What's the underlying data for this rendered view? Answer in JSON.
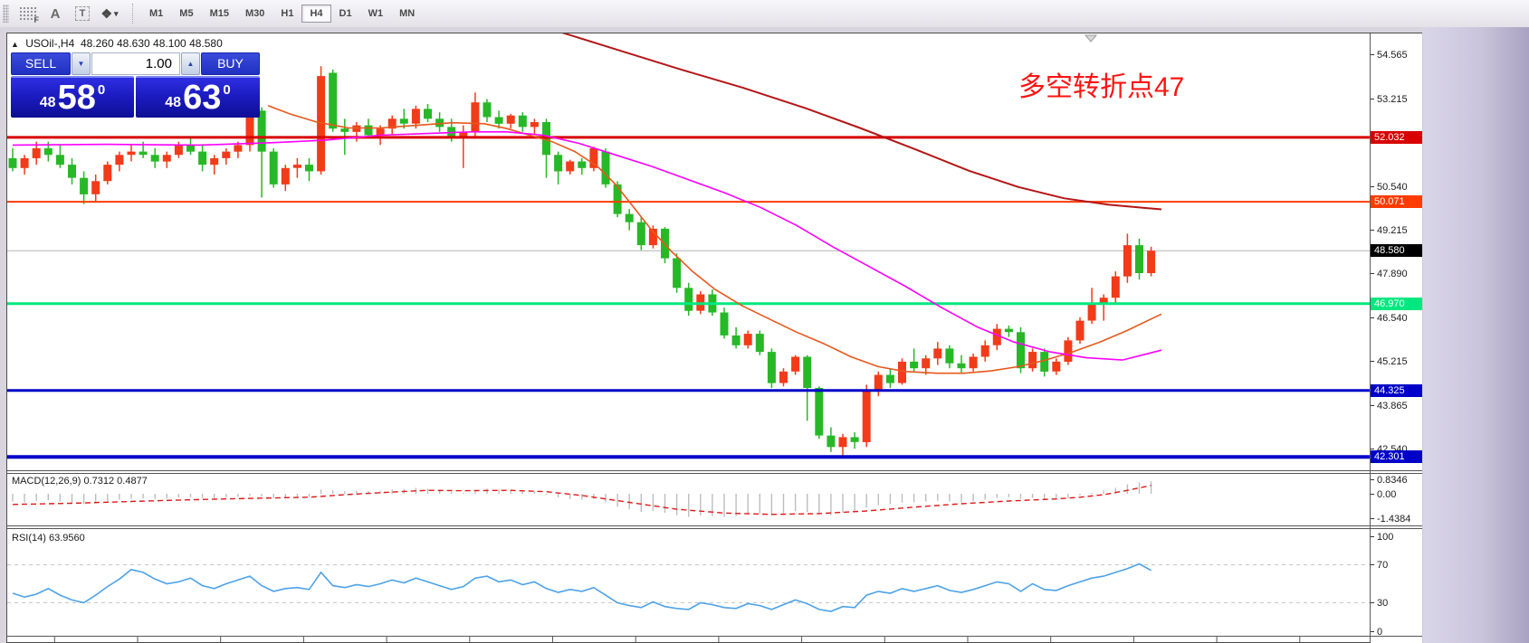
{
  "toolbar": {
    "icons": [
      {
        "name": "chart-shift-icon",
        "glyph": "F"
      },
      {
        "name": "text-label-icon",
        "glyph": "A"
      },
      {
        "name": "text-box-icon",
        "glyph": "T"
      },
      {
        "name": "arrows-shapes-icon",
        "glyph": "❖"
      }
    ],
    "timeframes": [
      {
        "label": "M1",
        "selected": false
      },
      {
        "label": "M5",
        "selected": false
      },
      {
        "label": "M15",
        "selected": false
      },
      {
        "label": "M30",
        "selected": false
      },
      {
        "label": "H1",
        "selected": false
      },
      {
        "label": "H4",
        "selected": true
      },
      {
        "label": "D1",
        "selected": false
      },
      {
        "label": "W1",
        "selected": false
      },
      {
        "label": "MN",
        "selected": false
      }
    ]
  },
  "header": {
    "collapse_arrow": "▲",
    "symbol": "USOil-,H4",
    "quotes": "48.260 48.630 48.100 48.580"
  },
  "trade_panel": {
    "sell_label": "SELL",
    "buy_label": "BUY",
    "volume": "1.00",
    "spin_down": "▼",
    "spin_up": "▲",
    "sell_price": {
      "small": "48",
      "big": "58",
      "sup": "0"
    },
    "buy_price": {
      "small": "48",
      "big": "63",
      "sup": "0"
    }
  },
  "annotation": {
    "text": "多空转折点47",
    "color": "#fd1412"
  },
  "macd_panel": {
    "label": "MACD(12,26,9) 0.7312 0.4877"
  },
  "rsi_panel": {
    "label": "RSI(14) 63.9560"
  },
  "chart_data": {
    "type": "candlestick",
    "symbol": "USOil-",
    "timeframe": "H4",
    "last_price": 48.58,
    "colors": {
      "up": "#f23b19",
      "down": "#27b827",
      "hist": "#bdbdbd",
      "signal": "#e01818",
      "rsi": "#4da2e8",
      "guide": "#c6c6c6"
    },
    "ohlc": [
      [
        51.4,
        51.7,
        51.0,
        51.1
      ],
      [
        51.1,
        51.5,
        50.9,
        51.4
      ],
      [
        51.4,
        51.9,
        51.2,
        51.7
      ],
      [
        51.7,
        51.9,
        51.3,
        51.5
      ],
      [
        51.5,
        51.8,
        51.1,
        51.2
      ],
      [
        51.2,
        51.4,
        50.6,
        50.8
      ],
      [
        50.8,
        51.0,
        50.0,
        50.3
      ],
      [
        50.3,
        50.9,
        50.1,
        50.7
      ],
      [
        50.7,
        51.3,
        50.6,
        51.2
      ],
      [
        51.2,
        51.6,
        51.0,
        51.5
      ],
      [
        51.5,
        51.8,
        51.3,
        51.6
      ],
      [
        51.6,
        51.9,
        51.4,
        51.5
      ],
      [
        51.5,
        51.7,
        51.1,
        51.3
      ],
      [
        51.3,
        51.6,
        51.1,
        51.5
      ],
      [
        51.5,
        51.9,
        51.4,
        51.8
      ],
      [
        51.8,
        52.0,
        51.5,
        51.6
      ],
      [
        51.6,
        51.8,
        51.0,
        51.2
      ],
      [
        51.2,
        51.5,
        50.9,
        51.4
      ],
      [
        51.4,
        51.7,
        51.2,
        51.6
      ],
      [
        51.6,
        51.9,
        51.4,
        51.8
      ],
      [
        51.8,
        52.9,
        51.6,
        52.85
      ],
      [
        52.85,
        52.95,
        50.2,
        51.6
      ],
      [
        51.6,
        51.7,
        50.5,
        50.6
      ],
      [
        50.6,
        51.2,
        50.4,
        51.1
      ],
      [
        51.1,
        51.4,
        50.8,
        51.2
      ],
      [
        51.2,
        51.4,
        50.7,
        51.0
      ],
      [
        51.0,
        54.2,
        50.9,
        53.9
      ],
      [
        54.0,
        54.1,
        52.2,
        52.3
      ],
      [
        52.3,
        52.6,
        51.5,
        52.2
      ],
      [
        52.2,
        52.5,
        51.9,
        52.4
      ],
      [
        52.4,
        52.6,
        52.0,
        52.1
      ],
      [
        52.1,
        52.4,
        51.8,
        52.3
      ],
      [
        52.3,
        52.7,
        52.1,
        52.6
      ],
      [
        52.6,
        52.9,
        52.3,
        52.45
      ],
      [
        52.45,
        53.0,
        52.3,
        52.9
      ],
      [
        52.9,
        53.05,
        52.5,
        52.6
      ],
      [
        52.6,
        52.8,
        52.2,
        52.35
      ],
      [
        52.35,
        52.6,
        51.9,
        52.05
      ],
      [
        52.05,
        52.4,
        51.1,
        52.2
      ],
      [
        52.2,
        53.4,
        52.0,
        53.1
      ],
      [
        53.1,
        53.2,
        52.5,
        52.65
      ],
      [
        52.65,
        52.85,
        52.3,
        52.45
      ],
      [
        52.45,
        52.75,
        52.3,
        52.7
      ],
      [
        52.7,
        52.8,
        52.2,
        52.35
      ],
      [
        52.35,
        52.6,
        52.1,
        52.5
      ],
      [
        52.5,
        52.6,
        50.8,
        51.5
      ],
      [
        51.5,
        51.6,
        50.6,
        51.0
      ],
      [
        51.0,
        51.35,
        50.9,
        51.3
      ],
      [
        51.3,
        51.4,
        50.9,
        51.1
      ],
      [
        51.1,
        51.75,
        51.0,
        51.7
      ],
      [
        51.6,
        51.7,
        50.5,
        50.6
      ],
      [
        50.6,
        50.7,
        49.6,
        49.7
      ],
      [
        49.7,
        49.85,
        49.2,
        49.45
      ],
      [
        49.45,
        49.6,
        48.6,
        48.75
      ],
      [
        48.75,
        49.35,
        48.65,
        49.25
      ],
      [
        49.25,
        49.3,
        48.2,
        48.35
      ],
      [
        48.35,
        48.5,
        47.3,
        47.45
      ],
      [
        47.45,
        47.6,
        46.6,
        46.75
      ],
      [
        46.75,
        47.35,
        46.65,
        47.25
      ],
      [
        47.25,
        47.4,
        46.6,
        46.7
      ],
      [
        46.7,
        46.85,
        45.9,
        46.0
      ],
      [
        46.0,
        46.25,
        45.6,
        45.7
      ],
      [
        45.7,
        46.15,
        45.6,
        46.05
      ],
      [
        46.05,
        46.15,
        45.4,
        45.5
      ],
      [
        45.5,
        45.6,
        44.4,
        44.55
      ],
      [
        44.55,
        45.0,
        44.45,
        44.9
      ],
      [
        44.9,
        45.4,
        44.8,
        45.35
      ],
      [
        45.35,
        45.4,
        43.4,
        44.4
      ],
      [
        44.4,
        44.45,
        42.85,
        42.95
      ],
      [
        42.95,
        43.2,
        42.45,
        42.6
      ],
      [
        42.6,
        43.0,
        42.35,
        42.9
      ],
      [
        42.9,
        43.05,
        42.55,
        42.75
      ],
      [
        42.75,
        44.5,
        42.6,
        44.3
      ],
      [
        44.3,
        44.9,
        44.15,
        44.8
      ],
      [
        44.8,
        45.0,
        44.4,
        44.55
      ],
      [
        44.55,
        45.3,
        44.5,
        45.2
      ],
      [
        45.2,
        45.6,
        44.9,
        45.0
      ],
      [
        45.0,
        45.4,
        44.8,
        45.3
      ],
      [
        45.3,
        45.8,
        45.1,
        45.6
      ],
      [
        45.6,
        45.7,
        45.0,
        45.15
      ],
      [
        45.15,
        45.4,
        44.85,
        45.0
      ],
      [
        45.0,
        45.45,
        44.9,
        45.35
      ],
      [
        45.35,
        45.85,
        45.2,
        45.7
      ],
      [
        45.7,
        46.35,
        45.55,
        46.2
      ],
      [
        46.2,
        46.3,
        45.95,
        46.1
      ],
      [
        46.1,
        46.25,
        44.85,
        45.0
      ],
      [
        45.0,
        45.6,
        44.9,
        45.5
      ],
      [
        45.5,
        45.6,
        44.75,
        44.9
      ],
      [
        44.9,
        45.3,
        44.8,
        45.2
      ],
      [
        45.2,
        45.95,
        45.1,
        45.85
      ],
      [
        45.85,
        46.55,
        45.75,
        46.45
      ],
      [
        46.45,
        47.45,
        46.35,
        46.95
      ],
      [
        46.95,
        47.25,
        46.45,
        47.15
      ],
      [
        47.15,
        47.95,
        46.95,
        47.8
      ],
      [
        47.8,
        49.1,
        47.6,
        48.75
      ],
      [
        48.75,
        48.95,
        47.7,
        47.9
      ],
      [
        47.9,
        48.7,
        47.8,
        48.58
      ]
    ],
    "ma": [
      {
        "name": "fast-orange",
        "color": "#e8581c",
        "width": 1.6,
        "points": [
          [
            296,
            53.0
          ],
          [
            320,
            52.75
          ],
          [
            350,
            52.5
          ],
          [
            385,
            52.32
          ],
          [
            420,
            52.32
          ],
          [
            460,
            52.4
          ],
          [
            500,
            52.48
          ],
          [
            535,
            52.45
          ],
          [
            560,
            52.3
          ],
          [
            585,
            52.1
          ],
          [
            610,
            51.9
          ],
          [
            635,
            51.6
          ],
          [
            660,
            51.15
          ],
          [
            680,
            50.6
          ],
          [
            700,
            49.9
          ],
          [
            720,
            49.2
          ],
          [
            742,
            48.55
          ],
          [
            765,
            47.95
          ],
          [
            790,
            47.4
          ],
          [
            820,
            46.9
          ],
          [
            850,
            46.5
          ],
          [
            880,
            46.1
          ],
          [
            910,
            45.75
          ],
          [
            940,
            45.35
          ],
          [
            970,
            45.05
          ],
          [
            1000,
            44.9
          ],
          [
            1035,
            44.85
          ],
          [
            1065,
            44.85
          ],
          [
            1095,
            44.92
          ],
          [
            1125,
            45.05
          ],
          [
            1155,
            45.25
          ],
          [
            1185,
            45.5
          ],
          [
            1215,
            45.8
          ],
          [
            1245,
            46.15
          ],
          [
            1283,
            46.65
          ]
        ]
      },
      {
        "name": "mid-magenta",
        "color": "#ff00ff",
        "width": 1.6,
        "points": [
          [
            14,
            51.8
          ],
          [
            120,
            51.82
          ],
          [
            220,
            51.8
          ],
          [
            300,
            51.87
          ],
          [
            360,
            51.95
          ],
          [
            420,
            52.1
          ],
          [
            470,
            52.15
          ],
          [
            520,
            52.2
          ],
          [
            560,
            52.2
          ],
          [
            600,
            52.1
          ],
          [
            640,
            51.85
          ],
          [
            680,
            51.5
          ],
          [
            720,
            51.15
          ],
          [
            760,
            50.75
          ],
          [
            800,
            50.35
          ],
          [
            840,
            49.9
          ],
          [
            880,
            49.35
          ],
          [
            920,
            48.7
          ],
          [
            960,
            48.1
          ],
          [
            1000,
            47.5
          ],
          [
            1040,
            46.85
          ],
          [
            1080,
            46.25
          ],
          [
            1120,
            45.8
          ],
          [
            1160,
            45.5
          ],
          [
            1200,
            45.32
          ],
          [
            1240,
            45.25
          ],
          [
            1283,
            45.55
          ]
        ]
      },
      {
        "name": "slow-darkred",
        "color": "#b41616",
        "width": 2,
        "points": [
          [
            612,
            55.3
          ],
          [
            680,
            54.72
          ],
          [
            750,
            54.12
          ],
          [
            820,
            53.55
          ],
          [
            890,
            52.92
          ],
          [
            950,
            52.32
          ],
          [
            1010,
            51.68
          ],
          [
            1070,
            51.02
          ],
          [
            1125,
            50.52
          ],
          [
            1175,
            50.18
          ],
          [
            1225,
            49.98
          ],
          [
            1283,
            49.84
          ]
        ]
      }
    ],
    "levels": [
      {
        "price": 52.032,
        "label": "52.032",
        "line": "#d80000",
        "w": 3,
        "badge": "#d80000"
      },
      {
        "price": 50.071,
        "label": "50.071",
        "line": "#ff3c00",
        "w": 2,
        "badge": "#ff3c00"
      },
      {
        "price": 48.58,
        "label": "48.580",
        "line": "#b4b4b4",
        "w": 1,
        "badge": "#000000"
      },
      {
        "price": 46.97,
        "label": "46.970",
        "line": "#00e87f",
        "w": 3,
        "badge": "#00e87f"
      },
      {
        "price": 44.325,
        "label": "44.325",
        "line": "#0000c8",
        "w": 3,
        "badge": "#0000c8"
      },
      {
        "price": 42.301,
        "label": "42.301",
        "line": "#0000c8",
        "w": 4,
        "badge": "#0000c8"
      }
    ],
    "axis_ticks": [
      {
        "label": "54.565",
        "value": 54.565
      },
      {
        "label": "53.215",
        "value": 53.215
      },
      {
        "label": "50.540",
        "value": 50.54
      },
      {
        "label": "49.215",
        "value": 49.215
      },
      {
        "label": "47.890",
        "value": 47.89
      },
      {
        "label": "46.540",
        "value": 46.54
      },
      {
        "label": "45.215",
        "value": 45.215
      },
      {
        "label": "43.865",
        "value": 43.865
      },
      {
        "label": "42.540",
        "value": 42.54
      }
    ],
    "macd": {
      "value": 0.7312,
      "signal": 0.4877,
      "scale": [
        {
          "label": "0.8346",
          "v": 0.8346
        },
        {
          "label": "0.00",
          "v": 0
        },
        {
          "label": "-1.4384",
          "v": -1.4384
        }
      ],
      "hist": [
        -0.45,
        -0.5,
        -0.42,
        -0.38,
        -0.45,
        -0.52,
        -0.6,
        -0.55,
        -0.45,
        -0.35,
        -0.3,
        -0.28,
        -0.3,
        -0.28,
        -0.22,
        -0.2,
        -0.25,
        -0.28,
        -0.22,
        -0.18,
        -0.1,
        -0.15,
        -0.25,
        -0.2,
        -0.18,
        -0.2,
        0.25,
        0.2,
        0.15,
        0.18,
        0.15,
        0.18,
        0.25,
        0.28,
        0.35,
        0.3,
        0.22,
        0.1,
        0.05,
        0.2,
        0.3,
        0.25,
        0.22,
        0.15,
        0.12,
        -0.05,
        -0.2,
        -0.3,
        -0.35,
        -0.3,
        -0.5,
        -0.75,
        -0.9,
        -1.05,
        -1.0,
        -1.1,
        -1.25,
        -1.35,
        -1.25,
        -1.3,
        -1.35,
        -1.3,
        -1.2,
        -1.15,
        -1.25,
        -1.15,
        -1.0,
        -1.05,
        -1.2,
        -1.25,
        -1.1,
        -1.0,
        -0.8,
        -0.65,
        -0.6,
        -0.5,
        -0.5,
        -0.45,
        -0.4,
        -0.45,
        -0.5,
        -0.45,
        -0.35,
        -0.25,
        -0.2,
        -0.3,
        -0.25,
        -0.3,
        -0.35,
        -0.25,
        -0.1,
        0.05,
        0.2,
        0.35,
        0.55,
        0.65,
        0.7312
      ],
      "signal_points": [
        [
          0,
          -0.62
        ],
        [
          5,
          -0.55
        ],
        [
          10,
          -0.45
        ],
        [
          15,
          -0.35
        ],
        [
          20,
          -0.27
        ],
        [
          25,
          -0.2
        ],
        [
          28,
          -0.05
        ],
        [
          32,
          0.1
        ],
        [
          35,
          0.2
        ],
        [
          38,
          0.18
        ],
        [
          42,
          0.2
        ],
        [
          45,
          0.12
        ],
        [
          48,
          -0.1
        ],
        [
          52,
          -0.5
        ],
        [
          56,
          -0.9
        ],
        [
          60,
          -1.12
        ],
        [
          64,
          -1.2
        ],
        [
          68,
          -1.15
        ],
        [
          72,
          -1.0
        ],
        [
          76,
          -0.78
        ],
        [
          80,
          -0.58
        ],
        [
          84,
          -0.42
        ],
        [
          88,
          -0.3
        ],
        [
          90,
          -0.2
        ],
        [
          92,
          -0.05
        ],
        [
          94,
          0.2
        ],
        [
          96,
          0.4877
        ]
      ]
    },
    "rsi": {
      "value": 63.956,
      "scale": [
        {
          "label": "100",
          "v": 100
        },
        {
          "label": "70",
          "v": 70
        },
        {
          "label": "30",
          "v": 30
        },
        {
          "label": "0",
          "v": 0
        }
      ],
      "guides": [
        70,
        30
      ],
      "values": [
        40,
        36,
        39,
        45,
        38,
        33,
        30,
        38,
        47,
        55,
        65,
        62,
        55,
        50,
        52,
        56,
        48,
        45,
        50,
        54,
        58,
        48,
        42,
        45,
        46,
        44,
        62,
        48,
        46,
        49,
        47,
        50,
        54,
        51,
        56,
        52,
        48,
        44,
        47,
        56,
        58,
        52,
        54,
        49,
        52,
        45,
        41,
        44,
        42,
        46,
        38,
        30,
        27,
        25,
        31,
        26,
        24,
        23,
        30,
        28,
        25,
        24,
        29,
        27,
        23,
        28,
        33,
        29,
        23,
        21,
        26,
        25,
        38,
        42,
        40,
        45,
        42,
        45,
        48,
        43,
        41,
        44,
        48,
        52,
        50,
        42,
        50,
        44,
        43,
        48,
        52,
        56,
        58,
        62,
        66,
        71,
        63.96
      ]
    }
  }
}
